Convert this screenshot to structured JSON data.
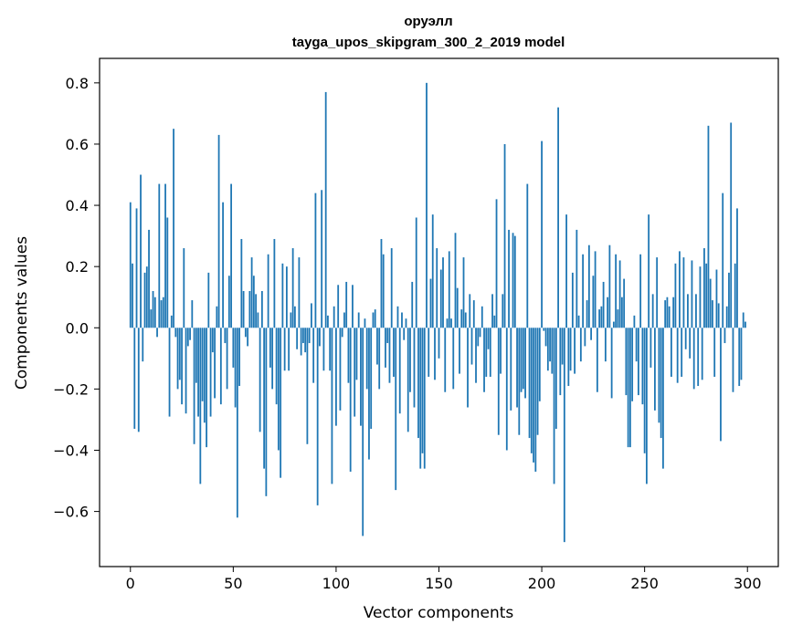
{
  "chart_data": {
    "type": "bar",
    "title_line1": "оруэлл",
    "title_line2": "tayga_upos_skipgram_300_2_2019 model",
    "xlabel": "Vector components",
    "ylabel": "Components values",
    "xlim": [
      -15,
      315
    ],
    "ylim": [
      -0.78,
      0.88
    ],
    "x_ticks": [
      0,
      50,
      100,
      150,
      200,
      250,
      300
    ],
    "x_tick_labels": [
      "0",
      "50",
      "100",
      "150",
      "200",
      "250",
      "300"
    ],
    "y_ticks": [
      -0.6,
      -0.4,
      -0.2,
      0.0,
      0.2,
      0.4,
      0.6,
      0.8
    ],
    "y_tick_labels": [
      "−0.6",
      "−0.4",
      "−0.2",
      "0.0",
      "0.2",
      "0.4",
      "0.6",
      "0.8"
    ],
    "bar_color": "#1f77b4",
    "grid": false,
    "values": [
      0.41,
      0.21,
      -0.33,
      0.39,
      -0.34,
      0.5,
      -0.11,
      0.18,
      0.2,
      0.32,
      0.06,
      0.12,
      0.1,
      -0.03,
      0.47,
      0.09,
      0.1,
      0.47,
      0.36,
      -0.29,
      0.04,
      0.65,
      -0.03,
      -0.2,
      -0.17,
      -0.25,
      0.26,
      -0.28,
      -0.06,
      -0.04,
      0.09,
      -0.38,
      -0.18,
      -0.29,
      -0.51,
      -0.24,
      -0.31,
      -0.39,
      0.18,
      -0.29,
      -0.08,
      -0.23,
      0.07,
      0.63,
      -0.25,
      0.41,
      -0.05,
      -0.2,
      0.17,
      0.47,
      -0.13,
      -0.26,
      -0.62,
      -0.19,
      0.29,
      0.12,
      -0.03,
      -0.06,
      0.12,
      0.23,
      0.17,
      0.11,
      0.05,
      -0.34,
      0.12,
      -0.46,
      -0.55,
      0.24,
      -0.13,
      -0.2,
      0.29,
      -0.25,
      -0.4,
      -0.49,
      0.21,
      -0.14,
      0.2,
      -0.14,
      0.05,
      0.26,
      0.07,
      -0.07,
      0.23,
      -0.09,
      -0.05,
      -0.08,
      -0.38,
      -0.05,
      0.08,
      -0.18,
      0.44,
      -0.58,
      -0.06,
      0.45,
      -0.14,
      0.77,
      0.04,
      -0.14,
      -0.51,
      0.07,
      -0.32,
      0.14,
      -0.27,
      -0.03,
      0.05,
      0.15,
      -0.18,
      -0.47,
      0.14,
      -0.29,
      -0.17,
      0.05,
      -0.32,
      -0.68,
      0.03,
      -0.2,
      -0.43,
      -0.33,
      0.05,
      0.06,
      -0.12,
      -0.2,
      0.29,
      0.24,
      -0.13,
      -0.05,
      -0.18,
      0.26,
      -0.16,
      -0.53,
      0.07,
      -0.28,
      0.05,
      -0.04,
      0.03,
      -0.34,
      -0.21,
      0.15,
      -0.26,
      0.36,
      -0.36,
      -0.46,
      -0.41,
      -0.46,
      0.8,
      -0.16,
      0.16,
      0.37,
      -0.17,
      0.26,
      -0.1,
      0.19,
      0.23,
      -0.21,
      0.03,
      0.25,
      0.03,
      -0.2,
      0.31,
      0.13,
      -0.15,
      0.06,
      0.23,
      0.05,
      -0.26,
      0.11,
      -0.12,
      0.09,
      -0.18,
      -0.06,
      -0.03,
      0.07,
      -0.21,
      -0.16,
      -0.07,
      -0.16,
      0.11,
      0.04,
      0.42,
      -0.35,
      -0.15,
      0.11,
      0.6,
      -0.4,
      0.32,
      -0.27,
      0.31,
      0.3,
      -0.26,
      -0.35,
      -0.21,
      -0.2,
      -0.23,
      0.47,
      -0.36,
      -0.41,
      -0.44,
      -0.47,
      -0.35,
      -0.24,
      0.61,
      -0.01,
      -0.06,
      -0.14,
      -0.11,
      -0.15,
      -0.51,
      -0.33,
      0.72,
      -0.22,
      -0.12,
      -0.7,
      0.37,
      -0.19,
      -0.14,
      0.18,
      -0.15,
      0.32,
      0.04,
      -0.11,
      0.24,
      -0.06,
      0.09,
      0.27,
      -0.04,
      0.17,
      0.25,
      -0.21,
      0.06,
      0.07,
      0.15,
      -0.11,
      0.1,
      0.27,
      -0.23,
      0.02,
      0.24,
      0.06,
      0.22,
      0.1,
      0.16,
      -0.22,
      -0.39,
      -0.39,
      -0.24,
      0.04,
      -0.11,
      -0.22,
      0.24,
      -0.25,
      -0.41,
      -0.51,
      0.37,
      -0.13,
      0.11,
      -0.27,
      0.23,
      -0.31,
      -0.36,
      -0.46,
      0.09,
      0.1,
      0.07,
      -0.16,
      0.1,
      0.21,
      -0.18,
      0.25,
      -0.16,
      0.23,
      -0.07,
      0.11,
      -0.1,
      0.22,
      -0.2,
      0.11,
      -0.19,
      0.2,
      -0.17,
      0.26,
      0.21,
      0.66,
      0.16,
      0.09,
      -0.16,
      0.19,
      0.08,
      -0.37,
      0.44,
      -0.05,
      0.07,
      0.18,
      0.67,
      -0.21,
      0.21,
      0.39,
      -0.19,
      -0.17,
      0.05,
      0.02
    ]
  }
}
